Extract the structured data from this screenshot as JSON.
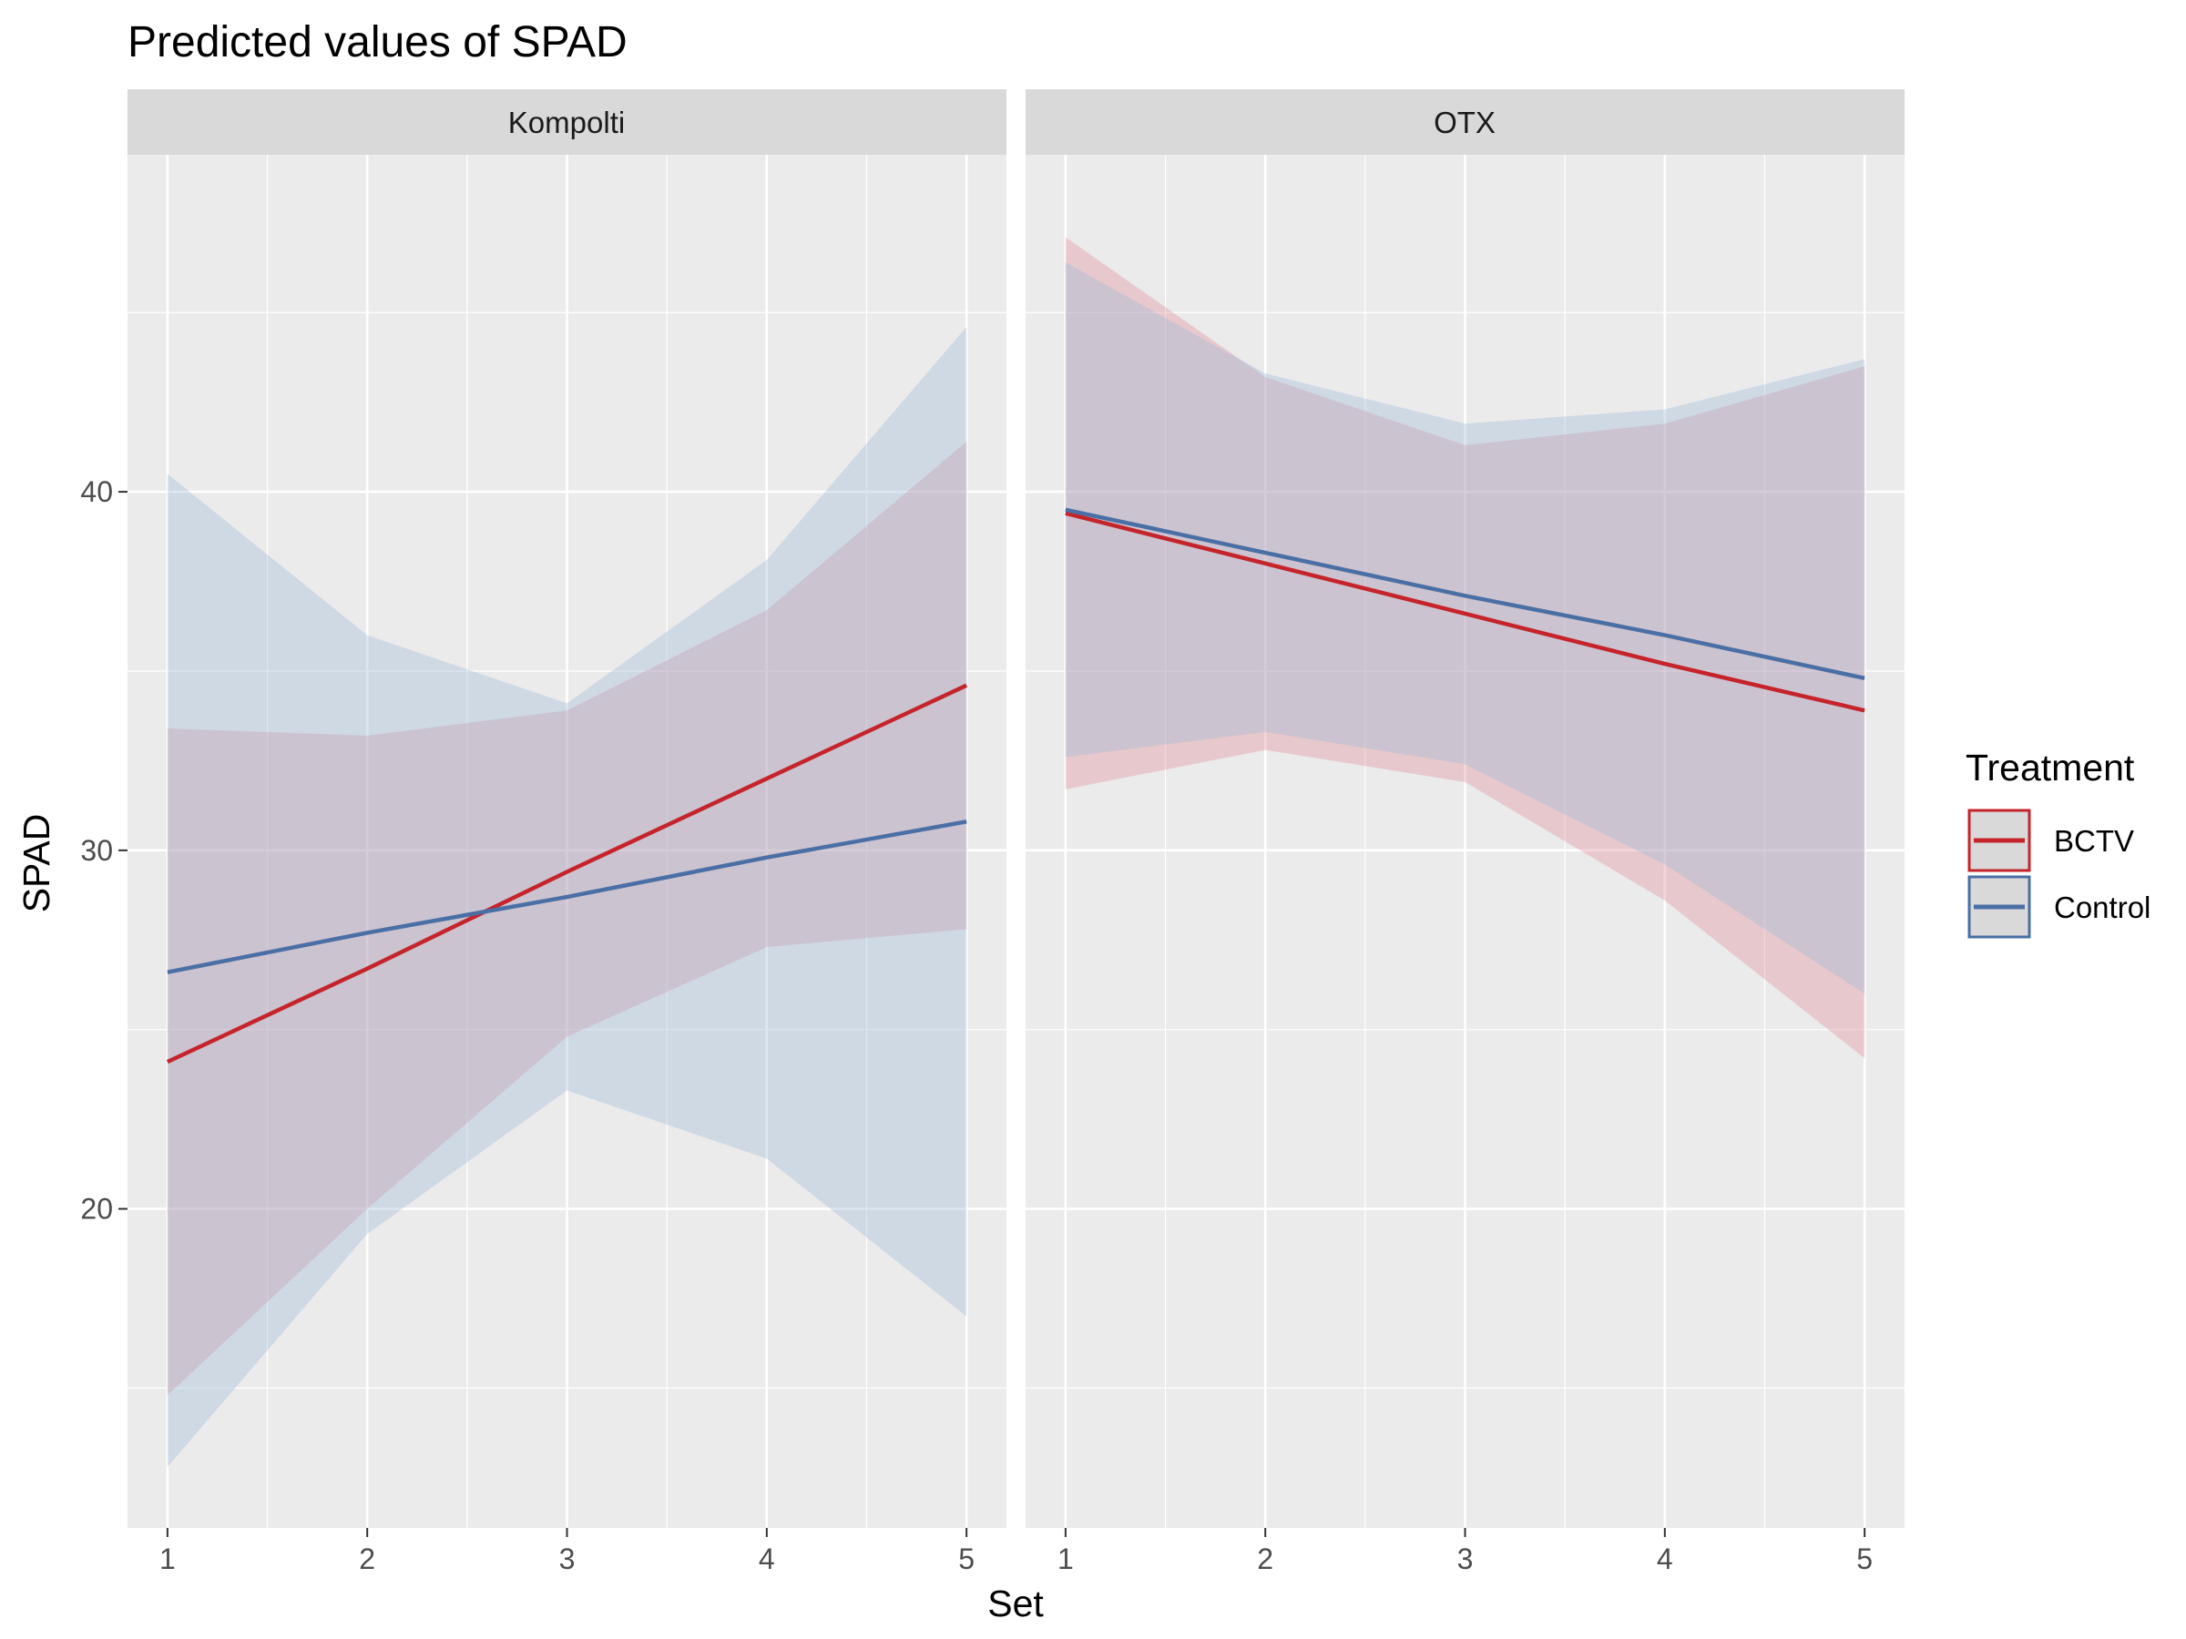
{
  "chart_data": {
    "type": "line",
    "title": "Predicted values of SPAD",
    "xlabel": "Set",
    "ylabel": "SPAD",
    "xlim": [
      0.8,
      5.2
    ],
    "ylim": [
      11.1,
      49.4
    ],
    "x_ticks": [
      1,
      2,
      3,
      4,
      5
    ],
    "y_ticks": [
      20,
      30,
      40
    ],
    "grid": true,
    "legend": {
      "title": "Treatment",
      "position": "right",
      "items": [
        {
          "label": "BCTV",
          "color": "#c5242a"
        },
        {
          "label": "Control",
          "color": "#4a6fa5"
        }
      ]
    },
    "panels": [
      {
        "label": "Kompolti",
        "series": [
          {
            "name": "BCTV",
            "color": "#c5242a",
            "fill": "#e08a95",
            "x": [
              1,
              2,
              3,
              4,
              5
            ],
            "values": [
              24.1,
              26.7,
              29.4,
              32.0,
              34.6
            ],
            "lower": [
              14.8,
              20.0,
              24.8,
              27.3,
              27.8
            ],
            "upper": [
              33.4,
              33.2,
              33.9,
              36.7,
              41.4
            ]
          },
          {
            "name": "Control",
            "color": "#4a6fa5",
            "fill": "#9cb8d6",
            "x": [
              1,
              2,
              3,
              4,
              5
            ],
            "values": [
              26.6,
              27.7,
              28.7,
              29.8,
              30.8
            ],
            "lower": [
              12.8,
              19.3,
              23.3,
              21.4,
              17.0
            ],
            "upper": [
              40.5,
              36.0,
              34.1,
              38.1,
              44.6
            ]
          }
        ]
      },
      {
        "label": "OTX",
        "series": [
          {
            "name": "BCTV",
            "color": "#c5242a",
            "fill": "#e08a95",
            "x": [
              1,
              2,
              3,
              4,
              5
            ],
            "values": [
              39.4,
              38.0,
              36.6,
              35.2,
              33.9
            ],
            "lower": [
              31.7,
              32.8,
              31.9,
              28.6,
              24.2
            ],
            "upper": [
              47.1,
              43.2,
              41.3,
              41.9,
              43.5
            ]
          },
          {
            "name": "Control",
            "color": "#4a6fa5",
            "fill": "#9cb8d6",
            "x": [
              1,
              2,
              3,
              4,
              5
            ],
            "values": [
              39.5,
              38.3,
              37.1,
              36.0,
              34.8
            ],
            "lower": [
              32.6,
              33.3,
              32.4,
              29.6,
              26.0
            ],
            "upper": [
              46.4,
              43.3,
              41.9,
              42.3,
              43.7
            ]
          }
        ]
      }
    ]
  }
}
